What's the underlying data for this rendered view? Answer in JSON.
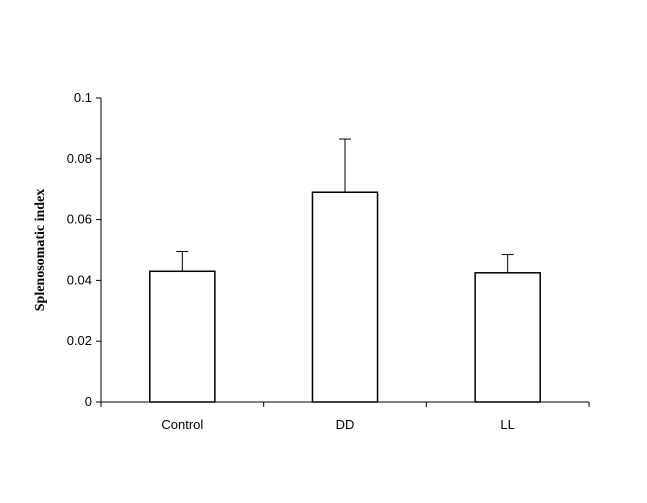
{
  "chart_data": {
    "type": "bar",
    "title": "",
    "xlabel": "",
    "ylabel": "Splenosomatic index",
    "categories": [
      "Control",
      "DD",
      "LL"
    ],
    "values": [
      0.043,
      0.069,
      0.0425
    ],
    "error_upper": [
      0.0495,
      0.0865,
      0.0485
    ],
    "ylim": [
      0,
      0.1
    ],
    "yticks": [
      0,
      0.02,
      0.04,
      0.06,
      0.08,
      0.1
    ],
    "ytick_labels": [
      "0",
      "0.02",
      "0.04",
      "0.06",
      "0.08",
      "0.1"
    ],
    "bar_fill": "#ffffff",
    "bar_stroke": "#000000",
    "grid": false,
    "legend": "none"
  }
}
